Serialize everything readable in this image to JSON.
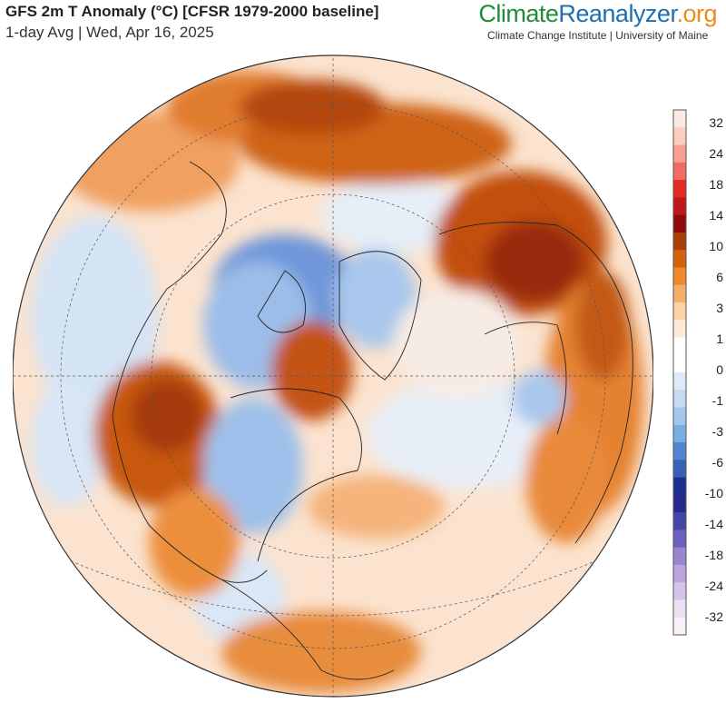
{
  "header": {
    "title": "GFS 2m T Anomaly (°C) [CFSR 1979-2000 baseline]",
    "subtitle": "1-day Avg | Wed, Apr 16, 2025"
  },
  "brand": {
    "part1": "Climate",
    "part2": "Reanalyzer",
    "part3": ".org",
    "tagline": "Climate Change Institute | University of Maine"
  },
  "legend": {
    "labels": [
      "32",
      "24",
      "18",
      "14",
      "10",
      "6",
      "3",
      "1",
      "0",
      "-1",
      "-3",
      "-6",
      "-10",
      "-14",
      "-18",
      "-24",
      "-32"
    ],
    "colors": [
      "#fde9e4",
      "#fbcdbf",
      "#f7a08f",
      "#f26b63",
      "#e32b24",
      "#c0181a",
      "#8f0b0b",
      "#a83d05",
      "#d4620c",
      "#ef8a2a",
      "#f6ad6a",
      "#fbd1a8",
      "#fdebd6",
      "#ffffff",
      "#ffffff",
      "#deeaf7",
      "#c3dcf2",
      "#a3c8ec",
      "#7aaee2",
      "#4f86cf",
      "#3761b4",
      "#1d2f8f",
      "#262a8c",
      "#4346a5",
      "#6c62bd",
      "#9a86cf",
      "#bba5dc",
      "#d6c3e8",
      "#ece1f3",
      "#f8f0f8"
    ]
  },
  "colors": {
    "land_warm": "#f2a564",
    "land_hot": "#c2500d",
    "land_cold": "#7fa7e0",
    "ocean_warm": "#fbe0c8",
    "ocean_cool": "#dce9f7"
  }
}
